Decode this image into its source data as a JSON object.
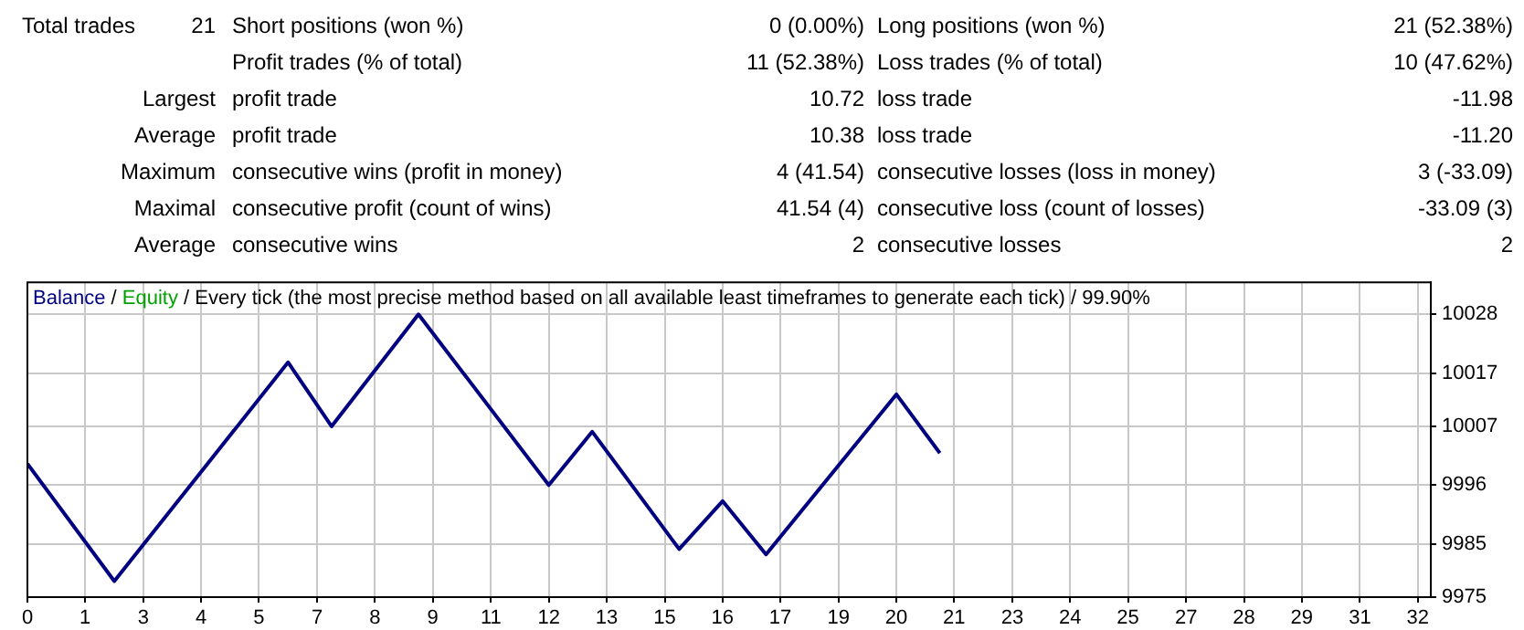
{
  "chart_data": [
    {
      "type": "other",
      "annotations": [
        "Total trades",
        "21",
        "Short positions (won %)",
        "0 (0.00%)",
        "Long positions (won %)",
        "21 (52.38%)",
        "Profit trades (% of total)",
        "11 (52.38%)",
        "Loss trades (% of total)",
        "10 (47.62%)",
        "Largest",
        "profit trade",
        "10.72",
        "loss trade",
        "-11.98",
        "Average",
        "profit trade",
        "10.38",
        "loss trade",
        "-11.20",
        "Maximum",
        "consecutive wins (profit in money)",
        "4 (41.54)",
        "consecutive losses (loss in money)",
        "3 (-33.09)",
        "Maximal",
        "consecutive profit (count of wins)",
        "41.54 (4)",
        "consecutive loss (count of losses)",
        "-33.09 (3)",
        "Average",
        "consecutive wins",
        "2",
        "consecutive losses",
        "2"
      ]
    },
    {
      "type": "line",
      "title": "Every tick (the most precise method based on all available least timeframes to generate each tick) / 99.90%",
      "x": [
        0,
        2,
        6,
        7,
        9,
        12,
        13,
        15,
        16,
        17,
        20,
        21
      ],
      "series": [
        {
          "name": "Balance",
          "color": "#000080",
          "values": [
            10000,
            9978,
            10019,
            10007,
            10028,
            9996,
            10006,
            9984,
            9993,
            9983,
            10013,
            10002
          ]
        },
        {
          "name": "Equity",
          "color": "#00a000",
          "values": [
            null,
            null,
            null,
            null,
            null,
            null,
            null,
            null,
            null,
            null,
            null,
            null
          ]
        }
      ],
      "annotations": [
        "/",
        "/"
      ],
      "xlim": [
        0,
        32.3
      ],
      "ylim": [
        9975,
        10034
      ],
      "xticks": [
        0,
        {
          "value": 1.33,
          "label": "1"
        },
        {
          "value": 2.67,
          "label": "3"
        },
        4,
        {
          "value": 5.33,
          "label": "5"
        },
        {
          "value": 6.67,
          "label": "7"
        },
        8,
        {
          "value": 9.33,
          "label": "9"
        },
        {
          "value": 10.67,
          "label": "11"
        },
        12,
        {
          "value": 13.33,
          "label": "13"
        },
        {
          "value": 14.67,
          "label": "15"
        },
        16,
        {
          "value": 17.33,
          "label": "17"
        },
        {
          "value": 18.67,
          "label": "19"
        },
        20,
        {
          "value": 21.33,
          "label": "21"
        },
        {
          "value": 22.67,
          "label": "23"
        },
        24,
        {
          "value": 25.33,
          "label": "25"
        },
        {
          "value": 26.67,
          "label": "27"
        },
        28,
        {
          "value": 29.33,
          "label": "29"
        },
        {
          "value": 30.67,
          "label": "31"
        },
        32
      ],
      "yticks": [
        9975,
        9985,
        9996,
        10007,
        10017,
        10028
      ],
      "grid": true
    }
  ]
}
